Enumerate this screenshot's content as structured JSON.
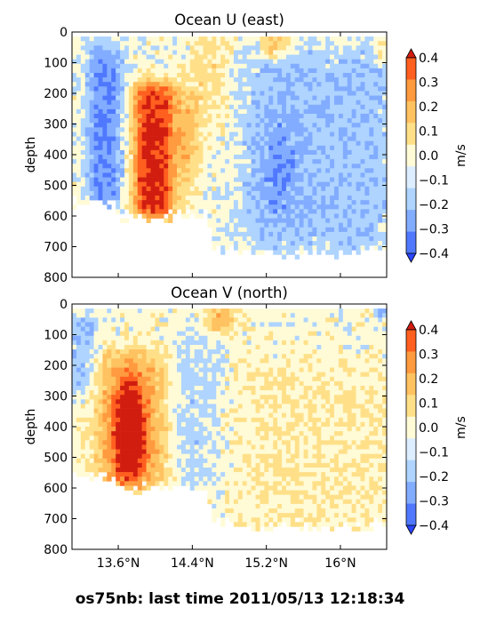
{
  "footer": {
    "text": "os75nb: last time 2011/05/13 12:18:34"
  },
  "colors": {
    "scale": [
      "#2a44ff",
      "#4f78ff",
      "#82acff",
      "#aed4ff",
      "#dceeff",
      "#fffbd7",
      "#ffe089",
      "#ffc261",
      "#ff9a3f",
      "#ff5f1f",
      "#d11d10"
    ],
    "blank": "#ffffff"
  },
  "chart_data": [
    {
      "type": "heatmap",
      "title": "Ocean U (east)",
      "ylabel": "depth",
      "xlabel": "",
      "ylim": [
        800,
        0
      ],
      "yticks": [
        "0",
        "100",
        "200",
        "300",
        "400",
        "500",
        "600",
        "700",
        "800"
      ],
      "xticks": [],
      "colorbar": {
        "label": "m/s",
        "ticks": [
          "0.4",
          "0.3",
          "0.2",
          "0.1",
          "0.0",
          "−0.1",
          "−0.2",
          "−0.3",
          "−0.4"
        ],
        "range": [
          -0.45,
          0.45
        ]
      },
      "x_range_deg": [
        13.1,
        16.5
      ],
      "data_summary": [
        {
          "feature": "core eastward jet",
          "lat_range": [
            13.75,
            14.2
          ],
          "depth_range": [
            170,
            600
          ],
          "value": 0.45
        },
        {
          "feature": "surface eastward",
          "lat_range": [
            15.0,
            15.5
          ],
          "depth_range": [
            20,
            100
          ],
          "value": 0.3
        },
        {
          "feature": "western westward band",
          "lat_range": [
            13.3,
            13.6
          ],
          "depth_range": [
            20,
            560
          ],
          "value": -0.2
        },
        {
          "feature": "eastern westward",
          "lat_range": [
            14.9,
            16.5
          ],
          "depth_range": [
            50,
            700
          ],
          "value": -0.1
        }
      ]
    },
    {
      "type": "heatmap",
      "title": "Ocean V (north)",
      "ylabel": "depth",
      "xlabel": "",
      "ylim": [
        800,
        0
      ],
      "yticks": [
        "0",
        "100",
        "200",
        "300",
        "400",
        "500",
        "600",
        "700",
        "800"
      ],
      "xticks": [
        "13.6°N",
        "14.4°N",
        "15.2°N",
        "16°N"
      ],
      "xtick_values": [
        13.6,
        14.4,
        15.2,
        16.0
      ],
      "colorbar": {
        "label": "m/s",
        "ticks": [
          "0.4",
          "0.3",
          "0.2",
          "0.1",
          "0.0",
          "−0.1",
          "−0.2",
          "−0.3",
          "−0.4"
        ],
        "range": [
          -0.45,
          0.45
        ]
      },
      "x_range_deg": [
        13.1,
        16.5
      ],
      "data_summary": [
        {
          "feature": "core northward",
          "lat_range": [
            13.5,
            14.0
          ],
          "depth_range": [
            200,
            600
          ],
          "value": 0.4
        },
        {
          "feature": "surface northward",
          "lat_range": [
            14.5,
            14.9
          ],
          "depth_range": [
            20,
            100
          ],
          "value": 0.3
        },
        {
          "feature": "western southward",
          "lat_range": [
            13.1,
            13.4
          ],
          "depth_range": [
            30,
            250
          ],
          "value": -0.1
        },
        {
          "feature": "eastern surface southward",
          "lat_range": [
            16.3,
            16.5
          ],
          "depth_range": [
            20,
            40
          ],
          "value": -0.3
        }
      ]
    }
  ]
}
